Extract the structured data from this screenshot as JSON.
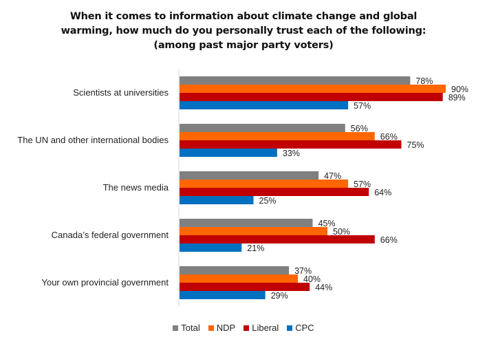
{
  "chart_data": {
    "type": "bar",
    "orientation": "horizontal",
    "title": [
      "When it comes to information about climate change and global",
      "warming, how much do you personally trust each of the following:",
      "(among past major party voters)"
    ],
    "xlabel": "",
    "ylabel": "",
    "xlim": [
      0,
      100
    ],
    "grid": false,
    "legend_position": "bottom",
    "value_suffix": "%",
    "categories": [
      "Scientists at universities",
      "The UN and other international bodies",
      "The news media",
      "Canada’s federal government",
      "Your own provincial government"
    ],
    "series": [
      {
        "name": "Total",
        "color": "#808080",
        "values": [
          78,
          56,
          47,
          45,
          37
        ]
      },
      {
        "name": "NDP",
        "color": "#ff6600",
        "values": [
          90,
          66,
          57,
          50,
          40
        ]
      },
      {
        "name": "Liberal",
        "color": "#c00000",
        "values": [
          89,
          75,
          64,
          66,
          44
        ]
      },
      {
        "name": "CPC",
        "color": "#0070c0",
        "values": [
          57,
          33,
          25,
          21,
          29
        ]
      }
    ]
  }
}
